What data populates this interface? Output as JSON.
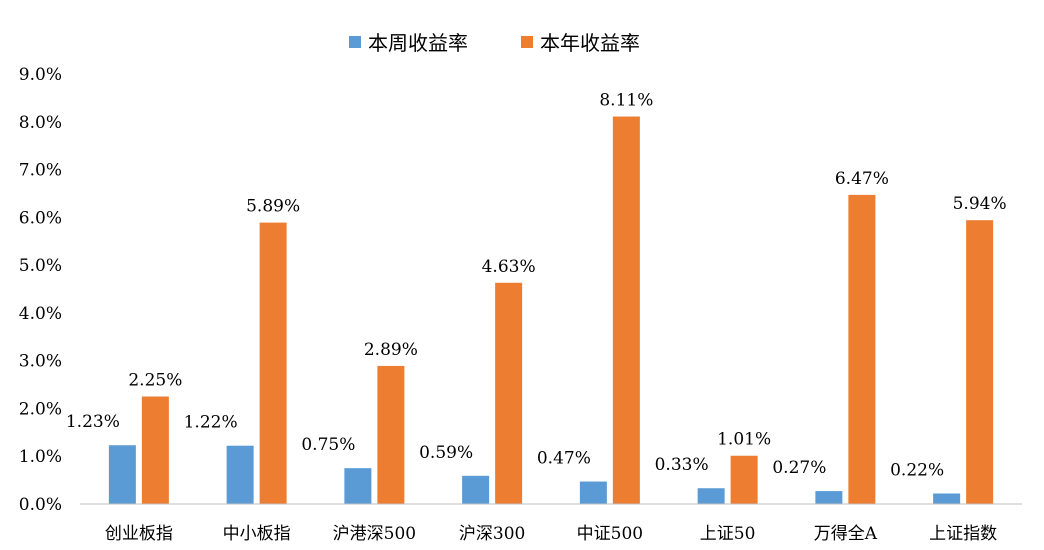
{
  "chart_data": {
    "type": "bar",
    "categories": [
      "创业板指",
      "中小板指",
      "沪港深500",
      "沪深300",
      "中证500",
      "上证50",
      "万得全A",
      "上证指数"
    ],
    "series": [
      {
        "name": "本周收益率",
        "color": "#5B9BD5",
        "values": [
          1.23,
          1.22,
          0.75,
          0.59,
          0.47,
          0.33,
          0.27,
          0.22
        ],
        "labels": [
          "1.23%",
          "1.22%",
          "0.75%",
          "0.59%",
          "0.47%",
          "0.33%",
          "0.27%",
          "0.22%"
        ]
      },
      {
        "name": "本年收益率",
        "color": "#ED7D31",
        "values": [
          2.25,
          5.89,
          2.89,
          4.63,
          8.11,
          1.01,
          6.47,
          5.94
        ],
        "labels": [
          "2.25%",
          "5.89%",
          "2.89%",
          "4.63%",
          "8.11%",
          "1.01%",
          "6.47%",
          "5.94%"
        ]
      }
    ],
    "ylim": [
      0,
      9
    ],
    "yticks": [
      "0.0%",
      "1.0%",
      "2.0%",
      "3.0%",
      "4.0%",
      "5.0%",
      "6.0%",
      "7.0%",
      "8.0%",
      "9.0%"
    ],
    "legend_position": "top-center",
    "grid": false
  }
}
